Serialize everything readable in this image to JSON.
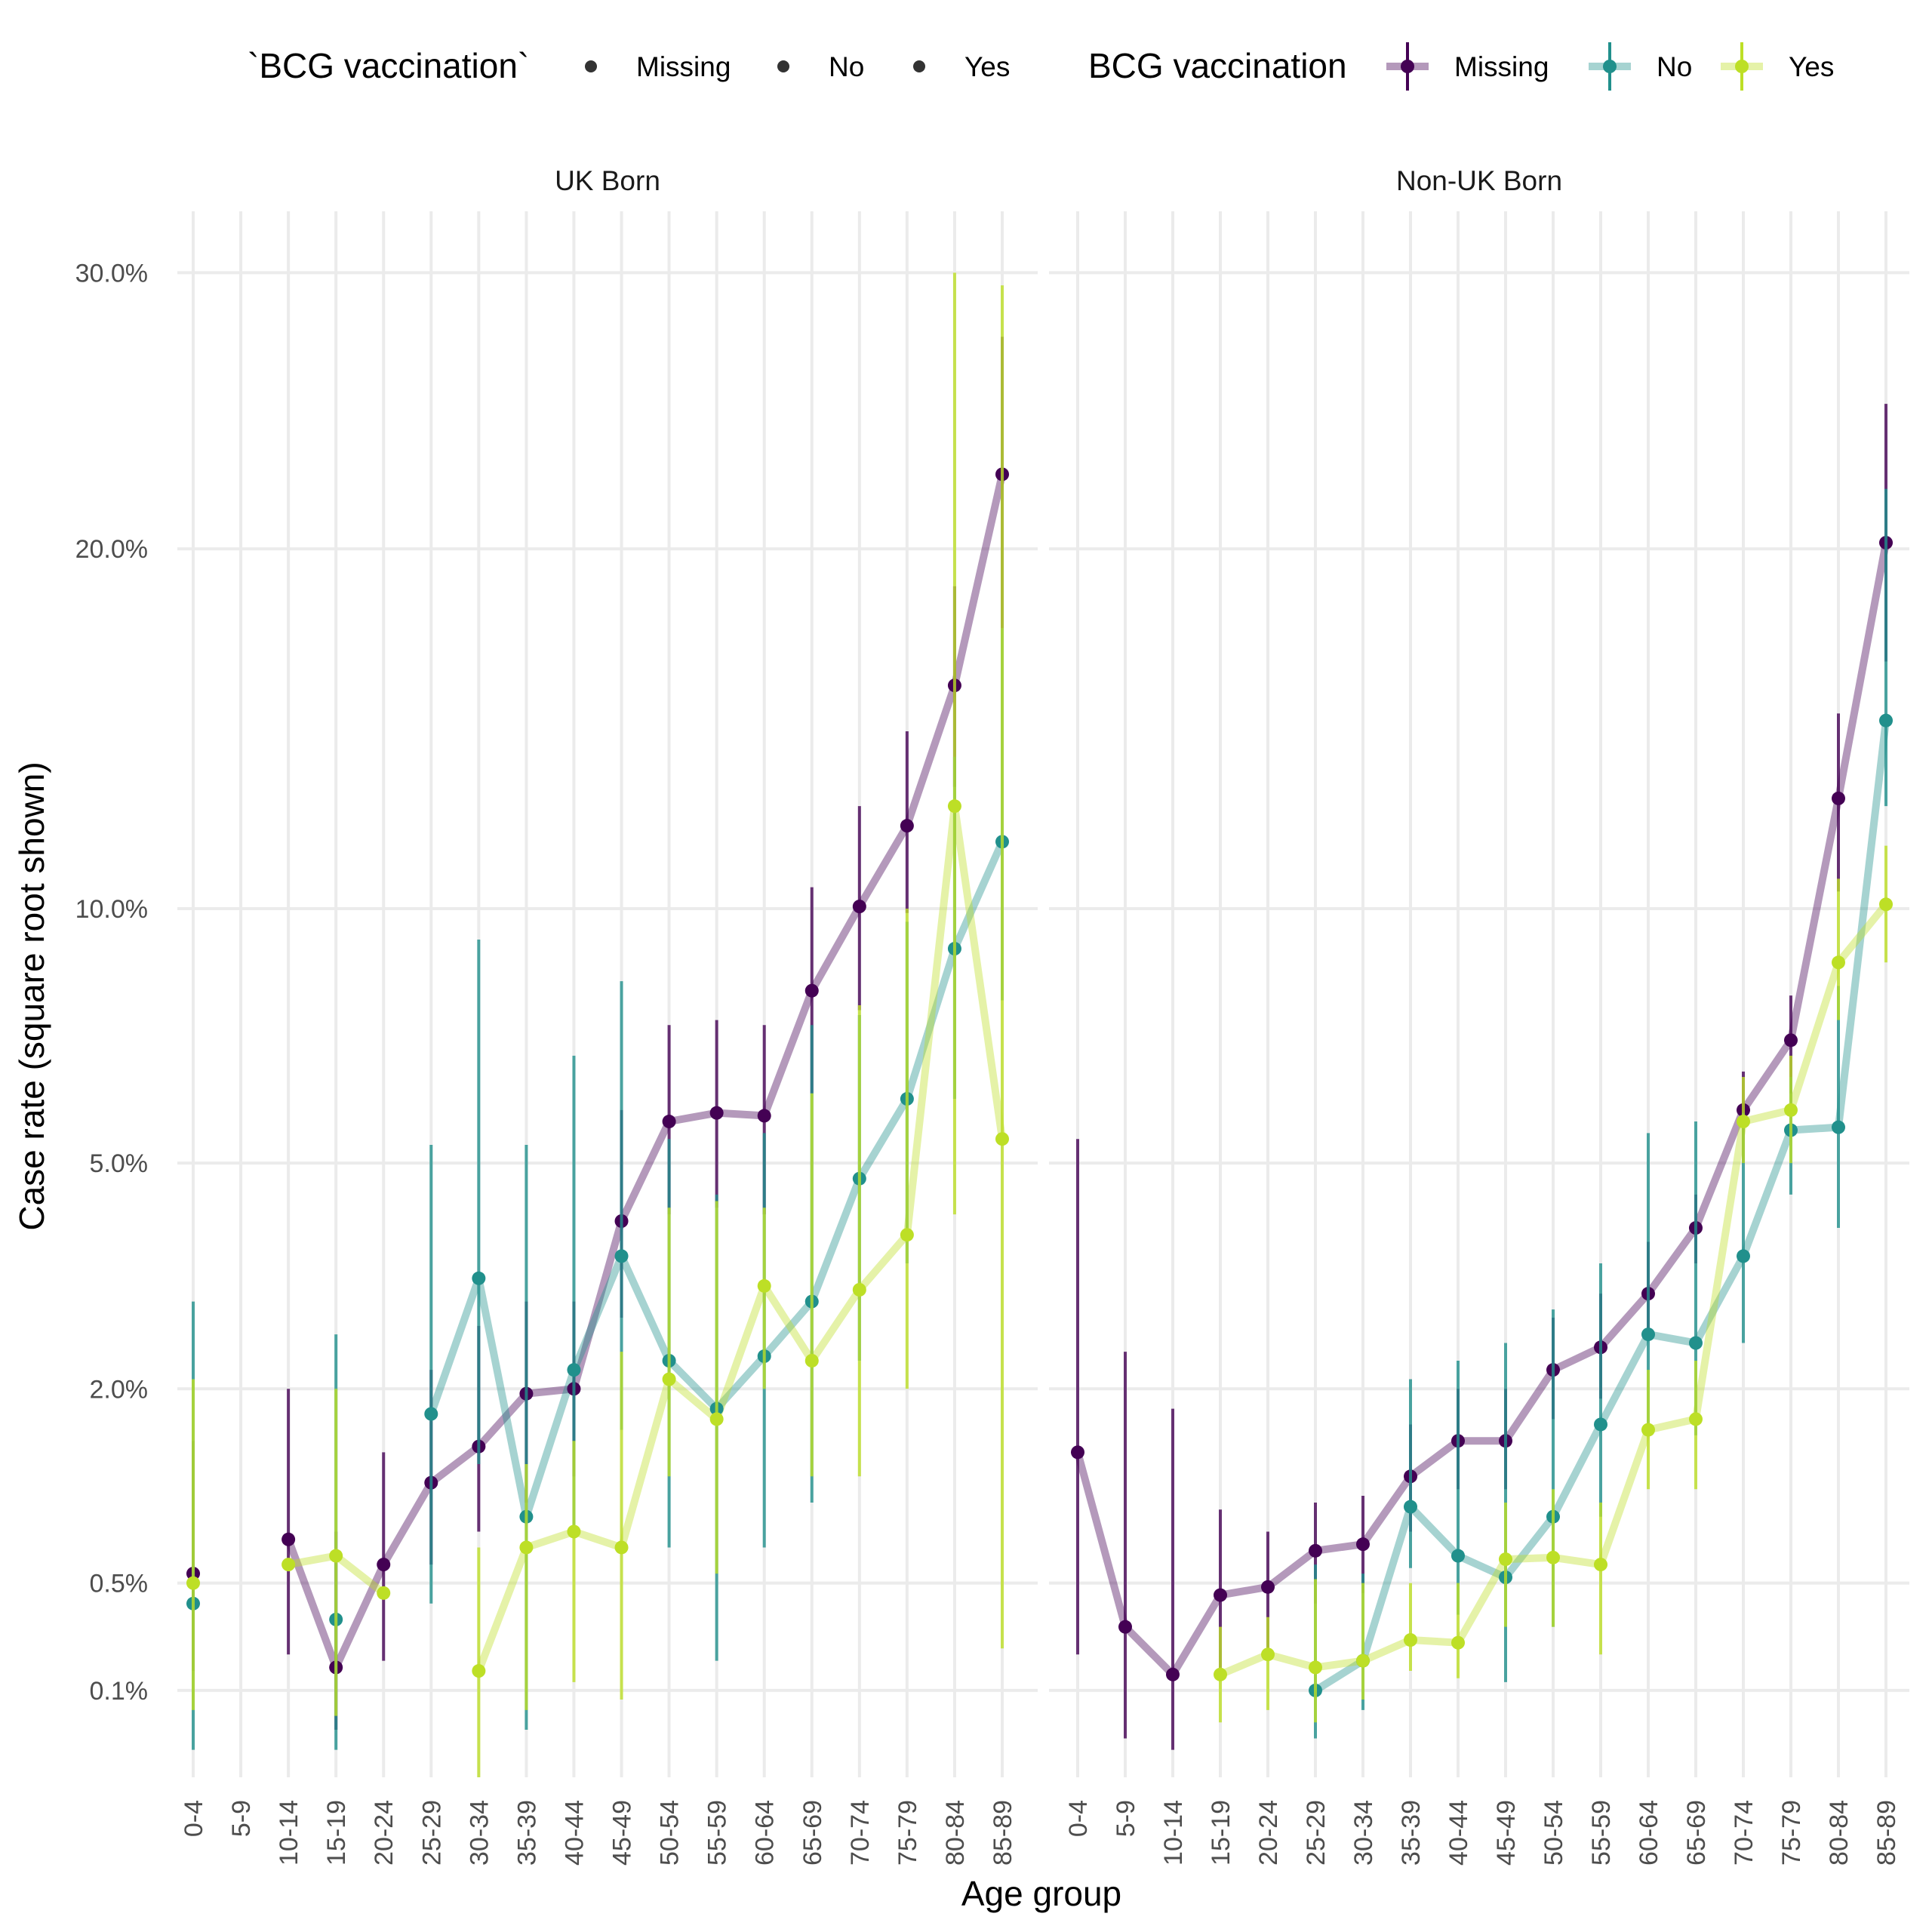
{
  "chart_data": {
    "type": "line",
    "xlabel": "Age group",
    "ylabel": "Case rate (square root shown)",
    "y_scale": "sqrt",
    "ylim": [
      0,
      32.5
    ],
    "y_ticks": [
      0.1,
      0.5,
      2.0,
      5.0,
      10.0,
      20.0,
      30.0
    ],
    "y_tick_labels": [
      "0.1%",
      "0.5%",
      "2.0%",
      "5.0%",
      "10.0%",
      "20.0%",
      "30.0%"
    ],
    "categories": [
      "0-4",
      "5-9",
      "10-14",
      "15-19",
      "20-24",
      "25-29",
      "30-34",
      "35-39",
      "40-44",
      "45-49",
      "50-54",
      "55-59",
      "60-64",
      "65-69",
      "70-74",
      "75-79",
      "80-84",
      "85-89"
    ],
    "grid": true,
    "legend_position": "top",
    "legends": [
      {
        "title": "`BCG vaccination`",
        "entries": [
          "Missing",
          "No",
          "Yes"
        ],
        "kind": "points"
      },
      {
        "title": "BCG vaccination",
        "entries": [
          "Missing",
          "No",
          "Yes"
        ],
        "kind": "line-range"
      }
    ],
    "colors": {
      "Missing": "#440154",
      "No": "#21908c",
      "Yes": "#bddf26"
    },
    "panels": [
      {
        "title": "UK Born",
        "series": [
          {
            "name": "Missing",
            "values": [
              0.55,
              null,
              0.75,
              0.16,
              0.6,
              1.15,
              1.45,
              1.95,
              2.0,
              4.1,
              5.7,
              5.85,
              5.8,
              8.2,
              10.05,
              12.0,
              15.8,
              22.5
            ],
            "lower": [
              0.15,
              null,
              0.2,
              0.03,
              0.18,
              0.6,
              0.8,
              1.0,
              1.2,
              2.8,
              4.2,
              4.3,
              4.2,
              6.2,
              7.8,
              9.9,
              13.0,
              17.5
            ],
            "upper": [
              1.5,
              null,
              2.0,
              0.8,
              1.4,
              2.2,
              2.7,
              3.0,
              3.0,
              5.9,
              7.5,
              7.6,
              7.5,
              10.5,
              12.5,
              14.5,
              18.8,
              27.5
            ]
          },
          {
            "name": "No",
            "values": [
              0.4,
              null,
              null,
              0.33,
              null,
              1.75,
              3.3,
              0.9,
              2.2,
              3.6,
              2.3,
              1.8,
              2.35,
              3.0,
              4.75,
              6.1,
              9.1,
              11.6
            ],
            "lower": [
              0.01,
              null,
              null,
              0.01,
              null,
              0.4,
              1.3,
              0.03,
              0.8,
              1.6,
              0.7,
              0.18,
              0.7,
              1.0,
              2.3,
              3.5,
              6.1,
              8.0
            ],
            "upper": [
              3.0,
              null,
              null,
              2.6,
              null,
              5.3,
              9.3,
              5.3,
              6.9,
              8.4,
              5.4,
              4.5,
              5.5,
              7.5,
              7.7,
              9.7,
              13.8,
              17.5
            ]
          },
          {
            "name": "Yes",
            "values": [
              0.5,
              null,
              0.6,
              0.65,
              0.45,
              null,
              0.15,
              0.7,
              0.8,
              0.7,
              2.1,
              1.7,
              3.2,
              2.3,
              3.15,
              3.9,
              12.5,
              5.4
            ],
            "lower": [
              0.06,
              null,
              null,
              0.05,
              null,
              null,
              0.0,
              0.06,
              0.12,
              0.08,
              1.2,
              0.55,
              2.0,
              1.2,
              1.2,
              2.0,
              4.2,
              0.22
            ],
            "upper": [
              2.1,
              null,
              null,
              2.0,
              null,
              null,
              0.7,
              1.3,
              1.5,
              2.4,
              4.3,
              4.4,
              4.3,
              6.2,
              7.9,
              10.0,
              30.0,
              29.5
            ]
          }
        ]
      },
      {
        "title": "Non-UK Born",
        "series": [
          {
            "name": "Missing",
            "values": [
              1.4,
              0.3,
              0.14,
              0.44,
              0.48,
              0.68,
              0.72,
              1.2,
              1.5,
              1.5,
              2.2,
              2.45,
              3.1,
              4.0,
              5.9,
              7.2,
              12.7,
              20.2
            ],
            "lower": [
              0.2,
              0.02,
              0.01,
              0.15,
              0.2,
              0.4,
              0.45,
              0.8,
              1.1,
              1.1,
              1.7,
              1.9,
              2.6,
              3.5,
              5.0,
              6.2,
              10.4,
              16.5
            ],
            "upper": [
              5.4,
              2.4,
              1.8,
              0.95,
              0.8,
              1.0,
              1.05,
              1.65,
              2.0,
              2.0,
              2.8,
              3.1,
              3.8,
              4.5,
              6.6,
              8.1,
              15.0,
              25.0
            ]
          },
          {
            "name": "No",
            "values": [
              null,
              null,
              null,
              null,
              null,
              0.1,
              0.18,
              0.97,
              0.65,
              0.53,
              0.9,
              1.65,
              2.6,
              2.5,
              3.6,
              5.55,
              5.6,
              14.8
            ],
            "lower": [
              null,
              null,
              null,
              null,
              null,
              0.02,
              0.06,
              0.58,
              0.35,
              0.12,
              0.3,
              0.9,
              1.65,
              1.55,
              2.5,
              4.5,
              4.0,
              12.5
            ],
            "upper": [
              null,
              null,
              null,
              null,
              null,
              0.6,
              0.55,
              2.1,
              2.3,
              2.5,
              2.9,
              3.5,
              5.5,
              5.7,
              5.85,
              6.5,
              8.3,
              22.0
            ]
          },
          {
            "name": "Yes",
            "values": [
              null,
              null,
              null,
              0.14,
              0.2,
              0.16,
              0.18,
              0.25,
              0.24,
              0.63,
              0.64,
              0.6,
              1.6,
              1.7,
              5.7,
              5.9,
              8.8,
              10.1
            ],
            "lower": [
              null,
              null,
              null,
              0.04,
              0.06,
              0.04,
              0.08,
              0.15,
              0.13,
              0.3,
              0.3,
              0.2,
              1.1,
              1.1,
              5.0,
              5.0,
              7.6,
              8.8
            ],
            "upper": [
              null,
              null,
              null,
              0.3,
              0.34,
              0.52,
              0.5,
              0.5,
              0.5,
              1.0,
              1.1,
              1.0,
              2.2,
              2.3,
              6.5,
              6.9,
              10.7,
              11.5
            ]
          }
        ]
      }
    ]
  }
}
